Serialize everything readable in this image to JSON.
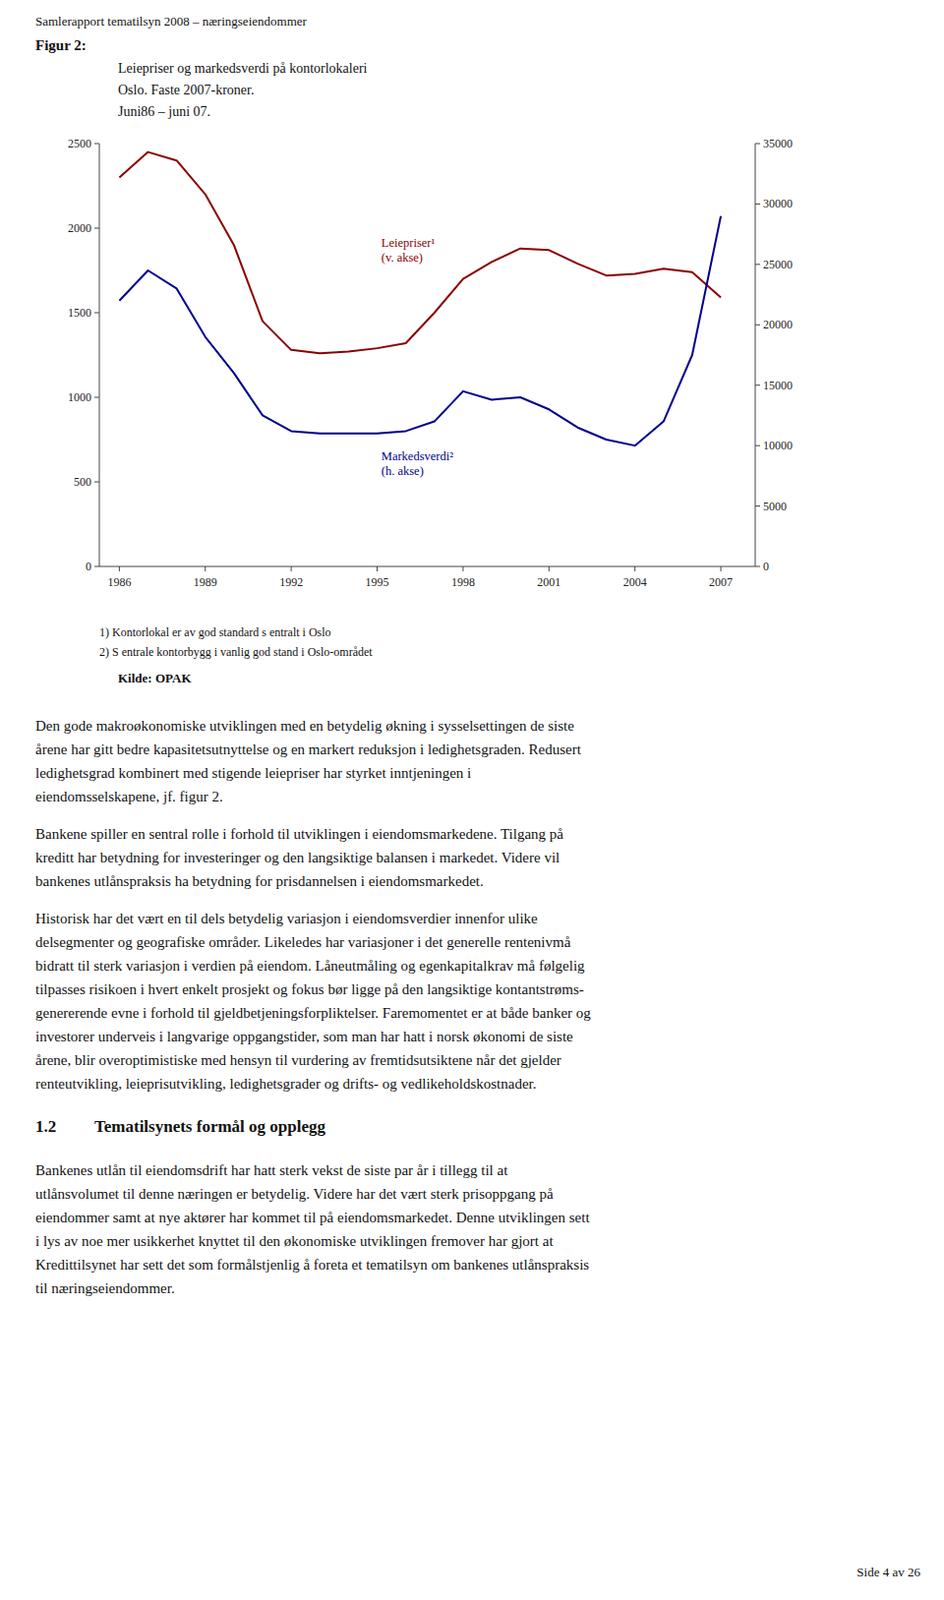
{
  "page_header": "Samlerapport tematilsyn 2008 – næringseiendommer",
  "figure_label": "Figur 2:",
  "chart_data": {
    "type": "line",
    "title": "Leiepriser og markedsverdi på kontorlokaleri",
    "subtitle": [
      "Oslo. Faste 2007-kroner.",
      "Juni86 – juni 07."
    ],
    "x": [
      1986,
      1987,
      1988,
      1989,
      1990,
      1991,
      1992,
      1993,
      1994,
      1995,
      1996,
      1997,
      1998,
      1999,
      2000,
      2001,
      2002,
      2003,
      2004,
      2005,
      2006,
      2007
    ],
    "xlim": [
      1985.3,
      2008.2
    ],
    "xticks": [
      1986,
      1989,
      1992,
      1995,
      1998,
      2001,
      2004,
      2007
    ],
    "ylim": [
      0,
      2500
    ],
    "yticks": [
      0,
      500,
      1000,
      1500,
      2000,
      2500
    ],
    "y2lim": [
      0,
      35000
    ],
    "y2ticks": [
      0,
      5000,
      10000,
      15000,
      20000,
      25000,
      30000,
      35000
    ],
    "grid": false,
    "series": [
      {
        "name": "Leiepriser¹\n(v. akse)",
        "color": "#8B0000",
        "values": [
          2300,
          2450,
          2400,
          2200,
          1900,
          1450,
          1280,
          1260,
          1270,
          1290,
          1320,
          1500,
          1700,
          1800,
          1880,
          1870,
          1790,
          1720,
          1730,
          1760,
          1740,
          1590
        ]
      },
      {
        "name": "Markedsverdi²\n(h. akse)",
        "color": "#00008B",
        "axis": "y2",
        "values": [
          22000,
          24500,
          23000,
          19000,
          16000,
          12500,
          11200,
          11000,
          11000,
          11000,
          11200,
          12000,
          14500,
          13800,
          14000,
          13000,
          11500,
          10500,
          10000,
          12000,
          17500,
          29000
        ]
      }
    ]
  },
  "footnotes": [
    "1) Kontorlokal er av god standard s entralt i Oslo",
    "2) S entrale kontorbygg i vanlig god stand i Oslo-området"
  ],
  "source": "Kilde: OPAK",
  "body": [
    {
      "lines": [
        "Den gode makroøkonomiske utviklingen med en betydelig økning i sysselsettingen de siste",
        "årene har gitt bedre kapasitetsutnyttelse og en markert reduksjon i ledighetsgraden. Redusert",
        "ledighetsgrad kombinert med stigende leiepriser har styrket inntjeningen i",
        "eiendomsselskapene, jf. figur 2."
      ]
    },
    {
      "lines": [
        "Bankene spiller en sentral rolle i forhold til utviklingen i eiendomsmarkedene. Tilgang på",
        "kreditt har betydning for investeringer og den langsiktige balansen i markedet. Videre vil",
        "bankenes utlånspraksis ha betydning for prisdannelsen i eiendomsmarkedet."
      ]
    },
    {
      "lines": [
        "Historisk har det vært en til dels betydelig variasjon i eiendomsverdier innenfor ulike",
        "delsegmenter og geografiske områder. Likeledes har variasjoner i det generelle rentenivmå",
        "bidratt til sterk variasjon i verdien på eiendom. Låneutmåling og egenkapitalkrav må følgelig",
        "tilpasses risikoen i hvert enkelt prosjekt og fokus bør ligge på den langsiktige kontantstrøms-",
        "genererende evne i forhold til gjeldbetjeningsforpliktelser. Faremomentet er at både banker og",
        "investorer underveis i langvarige oppgangstider, som man har hatt i norsk økonomi de siste",
        "årene, blir overoptimistiske med hensyn til vurdering av fremtidsutsiktene når det gjelder",
        "renteutvikling, leieprisutvikling, ledighetsgrader og drifts- og vedlikeholdskostnader."
      ]
    },
    {
      "section_number": "1.2",
      "section_title": "Tematilsynets formål og opplegg"
    },
    {
      "lines": [
        "Bankenes utlån til eiendomsdrift har hatt sterk vekst de siste par år i tillegg til at",
        "utlånsvolumet til denne næringen er betydelig. Videre har det vært sterk prisoppgang på",
        "eiendommer samt at nye aktører har kommet til på eiendomsmarkedet. Denne utviklingen sett",
        "i lys av noe mer usikkerhet knyttet til den økonomiske utviklingen fremover har gjort at",
        "Kredittilsynet har sett det som formålstjenlig å foreta et tematilsyn om bankenes utlånspraksis",
        "til næringseiendommer."
      ]
    }
  ],
  "page_footer": "Side 4 av 26"
}
